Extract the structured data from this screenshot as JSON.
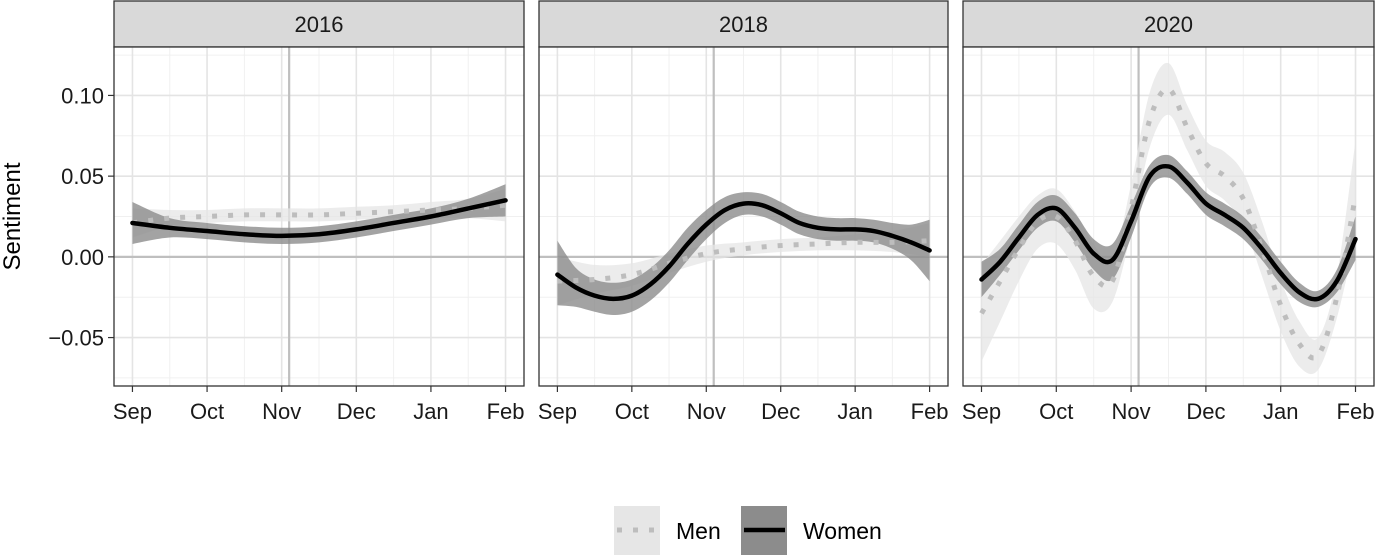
{
  "chart_data": {
    "type": "line",
    "ylabel": "Sentiment",
    "ylim": [
      -0.08,
      0.13
    ],
    "y_ticks": [
      -0.05,
      0.0,
      0.05,
      0.1
    ],
    "y_tick_labels": [
      "−0.05",
      "0.00",
      "0.05",
      "0.10"
    ],
    "x_tick_labels": [
      "Sep",
      "Oct",
      "Nov",
      "Dec",
      "Jan",
      "Feb"
    ],
    "x_range_months": [
      0,
      5
    ],
    "legend_position": "bottom",
    "legend": [
      {
        "name": "Men",
        "style": "dotted",
        "line_color": "#bdbdbd",
        "fill_color": "#e6e6e6"
      },
      {
        "name": "Women",
        "style": "solid",
        "line_color": "#000000",
        "fill_color": "#8c8c8c"
      }
    ],
    "panels": [
      {
        "title": "2016",
        "election_month": 2.1,
        "men": {
          "x": [
            0,
            0.5,
            1,
            1.5,
            2,
            2.5,
            3,
            3.5,
            4,
            4.5,
            5
          ],
          "y": [
            0.021,
            0.024,
            0.025,
            0.026,
            0.026,
            0.026,
            0.027,
            0.028,
            0.029,
            0.03,
            0.032
          ],
          "lower": [
            0.012,
            0.019,
            0.021,
            0.022,
            0.022,
            0.022,
            0.023,
            0.024,
            0.024,
            0.024,
            0.022
          ],
          "upper": [
            0.03,
            0.029,
            0.029,
            0.03,
            0.03,
            0.03,
            0.031,
            0.032,
            0.034,
            0.036,
            0.042
          ]
        },
        "women": {
          "x": [
            0,
            0.5,
            1,
            1.5,
            2,
            2.5,
            3,
            3.5,
            4,
            4.5,
            5
          ],
          "y": [
            0.021,
            0.018,
            0.016,
            0.014,
            0.013,
            0.014,
            0.017,
            0.021,
            0.025,
            0.03,
            0.035
          ],
          "lower": [
            0.008,
            0.012,
            0.011,
            0.009,
            0.008,
            0.009,
            0.012,
            0.016,
            0.02,
            0.024,
            0.025
          ],
          "upper": [
            0.034,
            0.024,
            0.021,
            0.019,
            0.018,
            0.019,
            0.022,
            0.026,
            0.03,
            0.036,
            0.045
          ]
        }
      },
      {
        "title": "2018",
        "election_month": 2.1,
        "men": {
          "x": [
            0,
            0.5,
            1,
            1.5,
            2,
            2.5,
            3,
            3.5,
            4,
            4.5,
            5
          ],
          "y": [
            -0.015,
            -0.014,
            -0.011,
            -0.004,
            0.002,
            0.005,
            0.007,
            0.008,
            0.009,
            0.009,
            0.01
          ],
          "lower": [
            -0.03,
            -0.023,
            -0.018,
            -0.01,
            -0.003,
            0.001,
            0.003,
            0.004,
            0.004,
            0.003,
            0.0
          ],
          "upper": [
            0.0,
            -0.005,
            -0.004,
            0.002,
            0.007,
            0.009,
            0.011,
            0.012,
            0.014,
            0.016,
            0.021
          ]
        },
        "women": {
          "x": [
            0,
            0.25,
            0.5,
            0.75,
            1,
            1.25,
            1.5,
            1.75,
            2,
            2.25,
            2.5,
            2.75,
            3,
            3.25,
            3.5,
            3.75,
            4,
            4.25,
            4.5,
            4.75,
            5
          ],
          "y": [
            -0.011,
            -0.019,
            -0.024,
            -0.026,
            -0.024,
            -0.017,
            -0.006,
            0.008,
            0.02,
            0.029,
            0.033,
            0.032,
            0.027,
            0.021,
            0.018,
            0.017,
            0.017,
            0.016,
            0.013,
            0.009,
            0.004
          ],
          "lower": [
            -0.03,
            -0.031,
            -0.034,
            -0.036,
            -0.034,
            -0.027,
            -0.016,
            -0.002,
            0.011,
            0.021,
            0.026,
            0.025,
            0.02,
            0.014,
            0.011,
            0.01,
            0.01,
            0.009,
            0.005,
            -0.002,
            -0.015
          ],
          "upper": [
            0.01,
            -0.007,
            -0.014,
            -0.016,
            -0.014,
            -0.007,
            0.004,
            0.018,
            0.029,
            0.037,
            0.04,
            0.039,
            0.034,
            0.028,
            0.025,
            0.024,
            0.024,
            0.023,
            0.021,
            0.02,
            0.023
          ]
        }
      },
      {
        "title": "2020",
        "election_month": 2.1,
        "men": {
          "x": [
            0,
            0.25,
            0.5,
            0.75,
            1,
            1.25,
            1.5,
            1.75,
            2,
            2.25,
            2.5,
            2.75,
            3,
            3.25,
            3.5,
            3.75,
            4,
            4.25,
            4.5,
            4.75,
            5
          ],
          "y": [
            -0.035,
            -0.015,
            0.005,
            0.022,
            0.025,
            0.01,
            -0.012,
            -0.015,
            0.03,
            0.085,
            0.104,
            0.08,
            0.058,
            0.05,
            0.036,
            0.005,
            -0.03,
            -0.054,
            -0.061,
            -0.025,
            0.038
          ],
          "lower": [
            -0.065,
            -0.04,
            -0.015,
            0.005,
            0.008,
            -0.008,
            -0.032,
            -0.028,
            0.015,
            0.068,
            0.088,
            0.066,
            0.044,
            0.035,
            0.02,
            -0.012,
            -0.046,
            -0.068,
            -0.07,
            -0.038,
            0.012
          ],
          "upper": [
            -0.005,
            0.01,
            0.025,
            0.038,
            0.042,
            0.028,
            0.008,
            -0.002,
            0.045,
            0.102,
            0.12,
            0.094,
            0.072,
            0.065,
            0.052,
            0.022,
            -0.014,
            -0.04,
            -0.05,
            -0.012,
            0.072
          ]
        },
        "women": {
          "x": [
            0,
            0.25,
            0.5,
            0.75,
            1,
            1.25,
            1.5,
            1.75,
            2,
            2.25,
            2.5,
            2.75,
            3,
            3.25,
            3.5,
            3.75,
            4,
            4.25,
            4.5,
            4.75,
            5
          ],
          "y": [
            -0.014,
            -0.003,
            0.012,
            0.026,
            0.03,
            0.018,
            0.002,
            -0.002,
            0.022,
            0.05,
            0.056,
            0.046,
            0.033,
            0.026,
            0.018,
            0.005,
            -0.01,
            -0.022,
            -0.026,
            -0.015,
            0.011
          ],
          "lower": [
            -0.025,
            -0.011,
            0.004,
            0.018,
            0.022,
            0.009,
            -0.008,
            -0.014,
            0.012,
            0.043,
            0.049,
            0.039,
            0.026,
            0.019,
            0.011,
            -0.002,
            -0.017,
            -0.028,
            -0.031,
            -0.022,
            -0.002
          ],
          "upper": [
            -0.003,
            0.005,
            0.02,
            0.034,
            0.038,
            0.027,
            0.011,
            0.008,
            0.032,
            0.057,
            0.063,
            0.053,
            0.04,
            0.033,
            0.025,
            0.012,
            -0.003,
            -0.016,
            -0.021,
            -0.008,
            0.025
          ]
        }
      }
    ]
  }
}
